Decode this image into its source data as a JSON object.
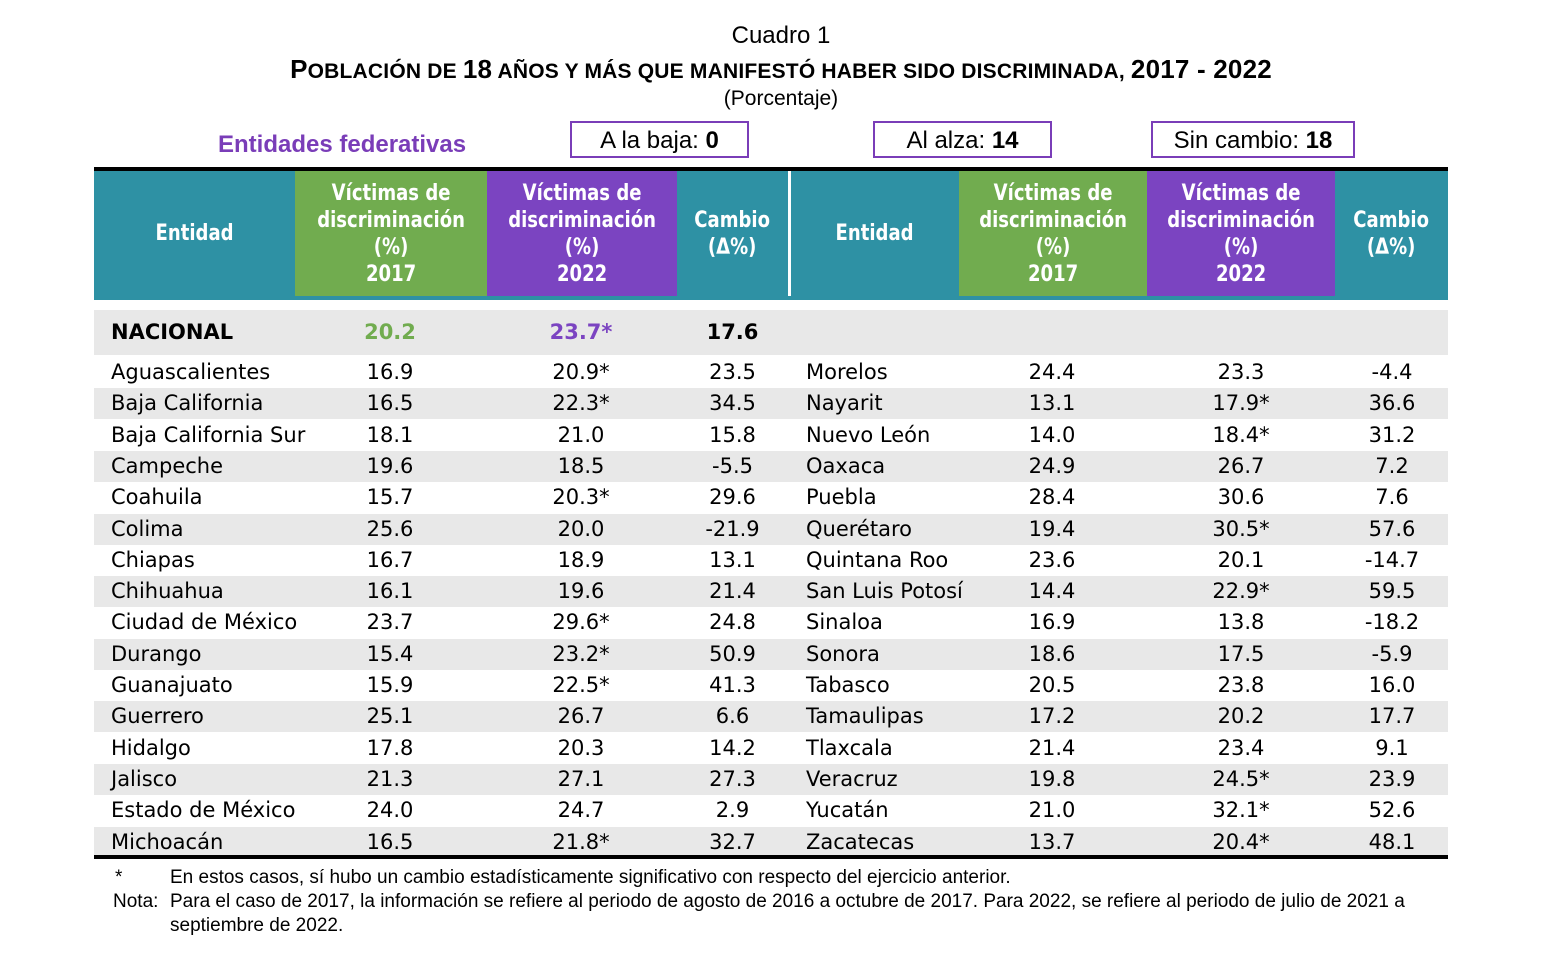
{
  "header": {
    "cuadro": "Cuadro 1",
    "titulo_p": "P",
    "titulo_a": "OBLACIÓN DE ",
    "titulo_b": "18",
    "titulo_c": " AÑOS Y MÁS QUE MANIFESTÓ HABER SIDO DISCRIMINADA, ",
    "titulo_d": "2017 - 2022",
    "unidad": "(Porcentaje)"
  },
  "summary": {
    "entidades_label": "Entidades federativas",
    "baja_label": "A la baja: ",
    "baja_value": "0",
    "alza_label": "Al alza: ",
    "alza_value": "14",
    "sin_label": "Sin cambio: ",
    "sin_value": "18"
  },
  "columns": {
    "entidad": "Entidad",
    "v2017": "Víctimas de\ndiscriminación\n(%)\n2017",
    "v2022": "Víctimas de\ndiscriminación\n(%)\n2022",
    "cambio": "Cambio\n(Δ%)"
  },
  "colors": {
    "teal": "#2e91a4",
    "green": "#71ac4f",
    "purple": "#7b44c1",
    "title_purple": "#7a3db8",
    "shade": "#e8e8e8"
  },
  "nacional": {
    "name": "NACIONAL",
    "v2017": "20.2",
    "v2022": "23.7*",
    "cambio": "17.6"
  },
  "rows_left": [
    [
      "Aguascalientes",
      "16.9",
      "20.9*",
      "23.5"
    ],
    [
      "Baja California",
      "16.5",
      "22.3*",
      "34.5"
    ],
    [
      "Baja California Sur",
      "18.1",
      "21.0",
      "15.8"
    ],
    [
      "Campeche",
      "19.6",
      "18.5",
      "-5.5"
    ],
    [
      "Coahuila",
      "15.7",
      "20.3*",
      "29.6"
    ],
    [
      "Colima",
      "25.6",
      "20.0",
      "-21.9"
    ],
    [
      "Chiapas",
      "16.7",
      "18.9",
      "13.1"
    ],
    [
      "Chihuahua",
      "16.1",
      "19.6",
      "21.4"
    ],
    [
      "Ciudad de México",
      "23.7",
      "29.6*",
      "24.8"
    ],
    [
      "Durango",
      "15.4",
      "23.2*",
      "50.9"
    ],
    [
      "Guanajuato",
      "15.9",
      "22.5*",
      "41.3"
    ],
    [
      "Guerrero",
      "25.1",
      "26.7",
      "6.6"
    ],
    [
      "Hidalgo",
      "17.8",
      "20.3",
      "14.2"
    ],
    [
      "Jalisco",
      "21.3",
      "27.1",
      "27.3"
    ],
    [
      "Estado de México",
      "24.0",
      "24.7",
      "2.9"
    ],
    [
      "Michoacán",
      "16.5",
      "21.8*",
      "32.7"
    ]
  ],
  "rows_right": [
    [
      "Morelos",
      "24.4",
      "23.3",
      "-4.4"
    ],
    [
      "Nayarit",
      "13.1",
      "17.9*",
      "36.6"
    ],
    [
      "Nuevo León",
      "14.0",
      "18.4*",
      "31.2"
    ],
    [
      "Oaxaca",
      "24.9",
      "26.7",
      "7.2"
    ],
    [
      "Puebla",
      "28.4",
      "30.6",
      "7.6"
    ],
    [
      "Querétaro",
      "19.4",
      "30.5*",
      "57.6"
    ],
    [
      "Quintana Roo",
      "23.6",
      "20.1",
      "-14.7"
    ],
    [
      "San Luis Potosí",
      "14.4",
      "22.9*",
      "59.5"
    ],
    [
      "Sinaloa",
      "16.9",
      "13.8",
      "-18.2"
    ],
    [
      "Sonora",
      "18.6",
      "17.5",
      "-5.9"
    ],
    [
      "Tabasco",
      "20.5",
      "23.8",
      "16.0"
    ],
    [
      "Tamaulipas",
      "17.2",
      "20.2",
      "17.7"
    ],
    [
      "Tlaxcala",
      "21.4",
      "23.4",
      "9.1"
    ],
    [
      "Veracruz",
      "19.8",
      "24.5*",
      "23.9"
    ],
    [
      "Yucatán",
      "21.0",
      "32.1*",
      "52.6"
    ],
    [
      "Zacatecas",
      "13.7",
      "20.4*",
      "48.1"
    ]
  ],
  "footnotes": {
    "star_symbol": "*",
    "star_text": "En estos casos, sí hubo un cambio estadísticamente significativo con respecto del ejercicio anterior.",
    "nota_label": "Nota:",
    "nota_text": "Para el caso de 2017, la información se refiere al periodo de agosto de 2016 a octubre de 2017. Para 2022, se refiere al periodo de julio de 2021 a septiembre de 2022."
  }
}
